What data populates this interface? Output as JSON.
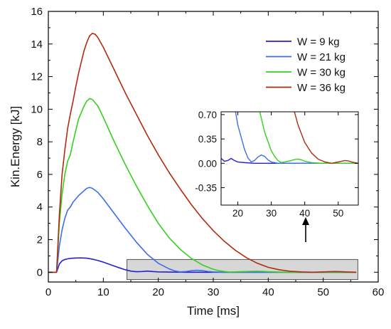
{
  "chart_data": [
    {
      "type": "line",
      "xlabel": "Time [ms]",
      "ylabel": "Kin.Energy [kJ]",
      "xlim": [
        0,
        60
      ],
      "ylim": [
        -0.6,
        16
      ],
      "xticks": [
        "0",
        "10",
        "20",
        "30",
        "40",
        "50",
        "60"
      ],
      "yticks": [
        "0",
        "2",
        "4",
        "6",
        "8",
        "10",
        "12",
        "14",
        "16"
      ],
      "legend_position": "top-right",
      "series": [
        {
          "name": "W = 9 kg",
          "color": "#2a1fd0",
          "x": [
            0,
            1.5,
            2,
            2.5,
            3,
            3.5,
            4,
            5,
            6,
            7,
            8,
            9,
            10,
            11,
            12,
            13,
            14,
            15,
            16,
            17,
            18,
            19,
            20,
            22,
            25,
            30,
            40,
            50,
            56
          ],
          "y": [
            0,
            0,
            0.5,
            0.7,
            0.78,
            0.82,
            0.85,
            0.87,
            0.88,
            0.86,
            0.8,
            0.72,
            0.62,
            0.5,
            0.38,
            0.26,
            0.15,
            0.07,
            0.03,
            0.04,
            0.07,
            0.04,
            0.02,
            0.01,
            0.0,
            0.0,
            0.0,
            0.0,
            0.0
          ]
        },
        {
          "name": "W = 21 kg",
          "color": "#3b6fe8",
          "x": [
            0,
            1.5,
            2,
            2.5,
            3,
            3.5,
            4,
            4.5,
            5,
            5.5,
            6,
            6.5,
            7,
            7.5,
            8,
            9,
            10,
            12,
            14,
            16,
            18,
            20,
            22,
            23,
            24,
            25,
            26,
            27,
            28,
            29,
            30,
            32,
            35,
            40,
            50,
            56
          ],
          "y": [
            0,
            0,
            1.6,
            2.6,
            3.3,
            3.8,
            4.0,
            4.3,
            4.5,
            4.7,
            4.85,
            5.0,
            5.15,
            5.2,
            5.15,
            4.9,
            4.5,
            3.6,
            2.7,
            1.85,
            1.1,
            0.55,
            0.2,
            0.08,
            0.02,
            0.04,
            0.09,
            0.12,
            0.1,
            0.05,
            0.02,
            0.0,
            0.0,
            0.0,
            0.0,
            0.0
          ]
        },
        {
          "name": "W = 30 kg",
          "color": "#33d11e",
          "x": [
            0,
            1.5,
            2,
            2.5,
            3,
            3.5,
            4,
            4.5,
            5,
            5.5,
            6,
            6.5,
            7,
            7.5,
            8,
            9,
            10,
            12,
            14,
            16,
            18,
            20,
            22,
            24,
            26,
            28,
            30,
            31,
            32,
            33,
            34,
            35,
            36,
            37,
            38,
            39,
            40,
            42,
            45,
            50,
            56
          ],
          "y": [
            0,
            0,
            3.0,
            4.8,
            6.0,
            6.8,
            7.2,
            8.0,
            8.7,
            9.4,
            9.8,
            10.2,
            10.5,
            10.65,
            10.6,
            10.2,
            9.5,
            8.0,
            6.6,
            5.3,
            4.1,
            3.0,
            2.1,
            1.4,
            0.85,
            0.45,
            0.18,
            0.1,
            0.04,
            0.01,
            0.02,
            0.03,
            0.04,
            0.055,
            0.06,
            0.05,
            0.03,
            0.01,
            0.0,
            0.0,
            0.0
          ]
        },
        {
          "name": "W = 36 kg",
          "color": "#b22a10",
          "x": [
            0,
            1.5,
            2,
            2.5,
            3,
            3.5,
            4,
            4.5,
            5,
            5.5,
            6,
            6.5,
            7,
            7.5,
            8,
            8.5,
            9,
            10,
            12,
            14,
            16,
            18,
            20,
            22,
            24,
            26,
            28,
            30,
            32,
            34,
            36,
            38,
            40,
            42,
            44,
            46,
            47,
            48,
            50,
            52,
            53,
            54,
            56
          ],
          "y": [
            0,
            0,
            3.5,
            6.0,
            7.5,
            8.8,
            9.7,
            10.5,
            11.4,
            12.2,
            12.9,
            13.6,
            14.1,
            14.5,
            14.65,
            14.6,
            14.4,
            13.8,
            12.4,
            11.0,
            9.7,
            8.4,
            7.2,
            6.1,
            5.1,
            4.15,
            3.3,
            2.55,
            1.9,
            1.35,
            0.9,
            0.55,
            0.3,
            0.15,
            0.06,
            0.02,
            0.01,
            0.0,
            0.02,
            0.04,
            0.035,
            0.02,
            0.0
          ]
        }
      ],
      "highlight_box": {
        "x": [
          14.3,
          56.3
        ],
        "y": [
          -0.45,
          0.78
        ]
      }
    },
    {
      "type": "line",
      "role": "inset",
      "xlim": [
        15,
        56
      ],
      "ylim": [
        -0.6,
        0.74
      ],
      "xticks": [
        "20",
        "30",
        "40",
        "50"
      ],
      "yticks": [
        "-0.35",
        "0.00",
        "0.35",
        "0.70"
      ]
    }
  ]
}
